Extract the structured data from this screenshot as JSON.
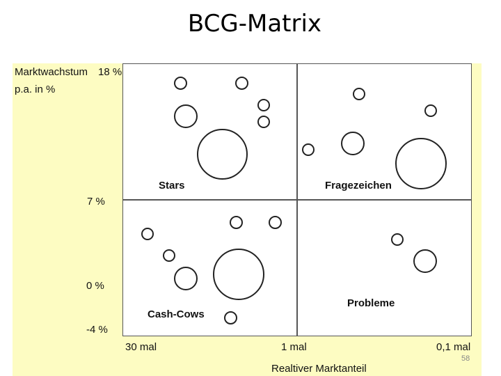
{
  "title": "BCG-Matrix",
  "y_axis": {
    "label_line1": "Marktwachstum",
    "label_line2": "p.a. in %",
    "ticks": [
      "18 %",
      "7 %",
      "0 %",
      "-4 %"
    ]
  },
  "x_axis": {
    "ticks": [
      "30 mal",
      "1 mal",
      "0,1 mal"
    ],
    "label": "Realtiver Marktanteil"
  },
  "quadrants": {
    "stars": "Stars",
    "question_marks": "Fragezeichen",
    "cash_cows": "Cash-Cows",
    "problems": "Probleme"
  },
  "page_number": "58"
}
